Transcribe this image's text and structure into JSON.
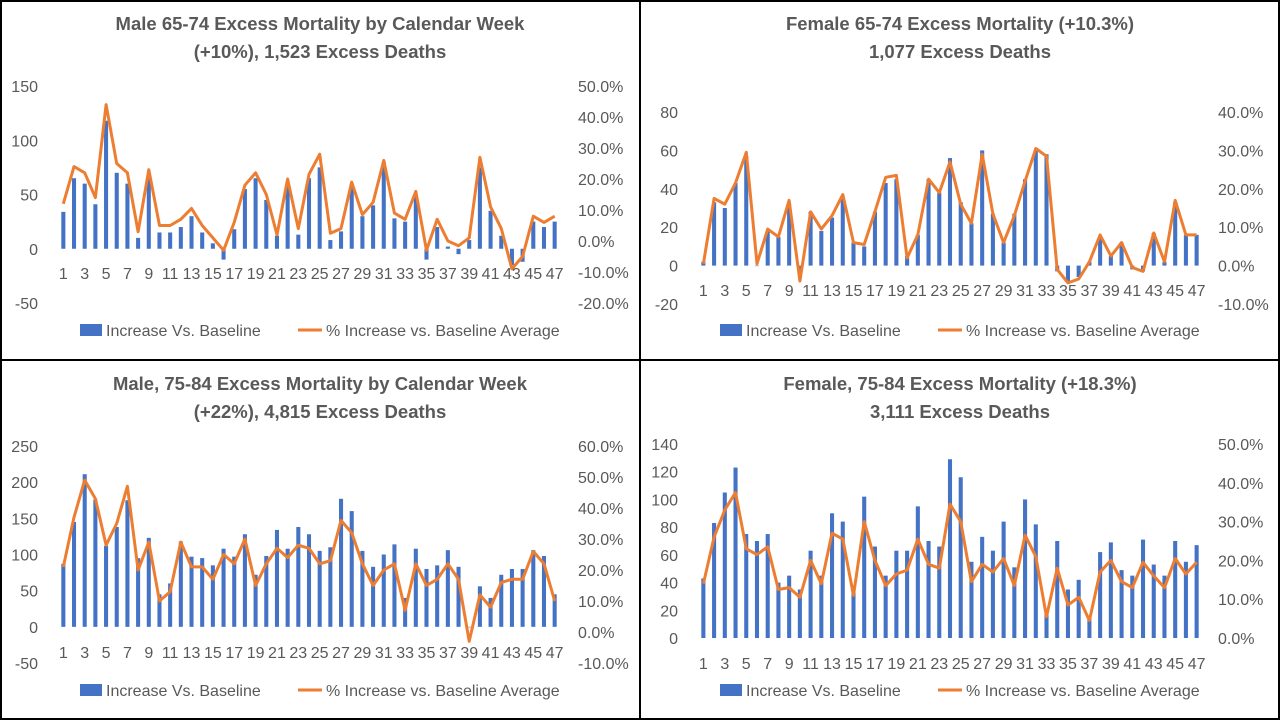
{
  "legend": {
    "bar_label": "Increase Vs. Baseline",
    "line_label": "% Increase vs. Baseline Average"
  },
  "colors": {
    "bar": "#4472C4",
    "line": "#ED7D31",
    "text": "#595959",
    "frame": "#000000"
  },
  "chart_data": [
    {
      "type": "bar",
      "combo": "bar+line (secondary axis)",
      "title_lines": [
        "Male 65-74 Excess Mortality by Calendar Week",
        "(+10%), 1,523 Excess Deaths"
      ],
      "ylim": [
        -50,
        150
      ],
      "yticks": [
        -50,
        0,
        50,
        100,
        150
      ],
      "y2lim": [
        -0.2,
        0.5
      ],
      "y2ticks": [
        "-20.0%",
        "-10.0%",
        "0.0%",
        "10.0%",
        "20.0%",
        "30.0%",
        "40.0%",
        "50.0%"
      ],
      "y2values": [
        -0.2,
        -0.1,
        0,
        0.1,
        0.2,
        0.3,
        0.4,
        0.5
      ],
      "x_label_weeks": [
        1,
        3,
        5,
        7,
        9,
        11,
        13,
        15,
        17,
        19,
        21,
        23,
        25,
        27,
        29,
        31,
        33,
        35,
        37,
        39,
        41,
        43,
        45,
        47
      ],
      "series": [
        {
          "name": "Increase Vs. Baseline",
          "axis": "primary",
          "values": [
            34,
            65,
            60,
            41,
            118,
            70,
            60,
            10,
            65,
            15,
            15,
            20,
            30,
            15,
            5,
            -10,
            18,
            55,
            65,
            45,
            12,
            60,
            13,
            65,
            75,
            8,
            16,
            60,
            30,
            40,
            80,
            28,
            25,
            50,
            -10,
            20,
            2,
            -5,
            8,
            75,
            35,
            12,
            -15,
            -12,
            25,
            20,
            25
          ]
        },
        {
          "name": "% Increase vs. Baseline Average",
          "axis": "secondary",
          "values": [
            0.12,
            0.24,
            0.22,
            0.14,
            0.44,
            0.25,
            0.22,
            0.03,
            0.23,
            0.05,
            0.05,
            0.07,
            0.105,
            0.05,
            0.01,
            -0.03,
            0.06,
            0.18,
            0.22,
            0.15,
            0.02,
            0.2,
            0.04,
            0.215,
            0.28,
            0.025,
            0.04,
            0.19,
            0.085,
            0.125,
            0.26,
            0.09,
            0.07,
            0.16,
            -0.03,
            0.07,
            0.0,
            -0.015,
            0.01,
            0.27,
            0.11,
            0.04,
            -0.09,
            -0.05,
            0.08,
            0.06,
            0.08
          ]
        }
      ]
    },
    {
      "type": "bar",
      "combo": "bar+line (secondary axis)",
      "title_lines": [
        "Female 65-74 Excess Mortality (+10.3%)",
        "1,077 Excess Deaths"
      ],
      "ylim": [
        -20,
        80
      ],
      "yticks": [
        -20,
        0,
        20,
        40,
        60,
        80
      ],
      "y2lim": [
        -0.1,
        0.4
      ],
      "y2ticks": [
        "-10.0%",
        "0.0%",
        "10.0%",
        "20.0%",
        "30.0%",
        "40.0%"
      ],
      "y2values": [
        -0.1,
        0,
        0.1,
        0.2,
        0.3,
        0.4
      ],
      "x_label_weeks": [
        1,
        3,
        5,
        7,
        9,
        11,
        13,
        15,
        17,
        19,
        21,
        23,
        25,
        27,
        29,
        31,
        33,
        35,
        37,
        39,
        41,
        43,
        45,
        47
      ],
      "series": [
        {
          "name": "Increase Vs. Baseline",
          "axis": "primary",
          "values": [
            2,
            33,
            30,
            43,
            57,
            0,
            18,
            15,
            32,
            -5,
            28,
            18,
            25,
            35,
            12,
            10,
            28,
            43,
            45,
            5,
            16,
            45,
            38,
            56,
            33,
            22,
            60,
            27,
            12,
            27,
            45,
            60,
            58,
            -3,
            -8,
            -6,
            2,
            15,
            5,
            12,
            -2,
            -3,
            17,
            2,
            33,
            16,
            16
          ]
        },
        {
          "name": "% Increase vs. Baseline Average",
          "axis": "secondary",
          "values": [
            0.005,
            0.175,
            0.16,
            0.215,
            0.295,
            0.005,
            0.095,
            0.075,
            0.17,
            -0.04,
            0.14,
            0.095,
            0.13,
            0.185,
            0.06,
            0.055,
            0.14,
            0.23,
            0.235,
            0.02,
            0.08,
            0.225,
            0.19,
            0.27,
            0.16,
            0.11,
            0.29,
            0.135,
            0.06,
            0.13,
            0.22,
            0.305,
            0.285,
            -0.01,
            -0.045,
            -0.035,
            0.01,
            0.08,
            0.025,
            0.06,
            -0.005,
            -0.015,
            0.085,
            0.01,
            0.17,
            0.08,
            0.08
          ]
        }
      ]
    },
    {
      "type": "bar",
      "combo": "bar+line (secondary axis)",
      "title_lines": [
        "Male, 75-84 Excess Mortality by Calendar Week",
        "(+22%), 4,815 Excess Deaths"
      ],
      "ylim": [
        -50,
        250
      ],
      "yticks": [
        -50,
        0,
        50,
        100,
        150,
        200,
        250
      ],
      "y2lim": [
        -0.1,
        0.6
      ],
      "y2ticks": [
        "-10.0%",
        "0.0%",
        "10.0%",
        "20.0%",
        "30.0%",
        "40.0%",
        "50.0%",
        "60.0%"
      ],
      "y2values": [
        -0.1,
        0,
        0.1,
        0.2,
        0.3,
        0.4,
        0.5,
        0.6
      ],
      "x_label_weeks": [
        1,
        3,
        5,
        7,
        9,
        11,
        13,
        15,
        17,
        19,
        21,
        23,
        25,
        27,
        29,
        31,
        33,
        35,
        37,
        39,
        41,
        43,
        45,
        47
      ],
      "series": [
        {
          "name": "Increase Vs. Baseline",
          "axis": "primary",
          "values": [
            87,
            145,
            211,
            176,
            112,
            138,
            175,
            95,
            123,
            45,
            60,
            118,
            97,
            95,
            85,
            108,
            97,
            128,
            72,
            98,
            134,
            108,
            138,
            128,
            105,
            110,
            177,
            160,
            105,
            83,
            100,
            114,
            40,
            108,
            80,
            85,
            106,
            83,
            0,
            56,
            40,
            72,
            80,
            80,
            106,
            98,
            45
          ]
        },
        {
          "name": "% Increase vs. Baseline Average",
          "axis": "secondary",
          "values": [
            0.21,
            0.37,
            0.49,
            0.43,
            0.28,
            0.35,
            0.47,
            0.2,
            0.29,
            0.1,
            0.13,
            0.29,
            0.21,
            0.21,
            0.17,
            0.25,
            0.22,
            0.3,
            0.15,
            0.22,
            0.27,
            0.24,
            0.28,
            0.27,
            0.22,
            0.23,
            0.36,
            0.32,
            0.22,
            0.15,
            0.2,
            0.22,
            0.07,
            0.22,
            0.15,
            0.17,
            0.22,
            0.17,
            -0.03,
            0.12,
            0.08,
            0.16,
            0.17,
            0.17,
            0.26,
            0.22,
            0.1
          ]
        }
      ]
    },
    {
      "type": "bar",
      "combo": "bar+line (secondary axis)",
      "title_lines": [
        "Female, 75-84 Excess Mortality (+18.3%)",
        "3,111 Excess Deaths"
      ],
      "ylim": [
        0,
        140
      ],
      "yticks": [
        0,
        20,
        40,
        60,
        80,
        100,
        120,
        140
      ],
      "y2lim": [
        0,
        0.5
      ],
      "y2ticks": [
        "0.0%",
        "10.0%",
        "20.0%",
        "30.0%",
        "40.0%",
        "50.0%"
      ],
      "y2values": [
        0,
        0.1,
        0.2,
        0.3,
        0.4,
        0.5
      ],
      "x_label_weeks": [
        1,
        3,
        5,
        7,
        9,
        11,
        13,
        15,
        17,
        19,
        21,
        23,
        25,
        27,
        29,
        31,
        33,
        35,
        37,
        39,
        41,
        43,
        45,
        47
      ],
      "series": [
        {
          "name": "Increase Vs. Baseline",
          "axis": "primary",
          "values": [
            43,
            83,
            105,
            123,
            75,
            70,
            75,
            40,
            45,
            35,
            63,
            45,
            90,
            84,
            38,
            102,
            66,
            45,
            63,
            63,
            95,
            70,
            66,
            129,
            116,
            55,
            73,
            63,
            84,
            51,
            100,
            82,
            20,
            70,
            35,
            42,
            15,
            62,
            69,
            49,
            45,
            71,
            53,
            45,
            70,
            55,
            67
          ]
        },
        {
          "name": "% Increase vs. Baseline Average",
          "axis": "secondary",
          "values": [
            0.14,
            0.26,
            0.33,
            0.375,
            0.23,
            0.215,
            0.235,
            0.125,
            0.13,
            0.105,
            0.2,
            0.14,
            0.27,
            0.255,
            0.11,
            0.3,
            0.2,
            0.135,
            0.165,
            0.175,
            0.255,
            0.19,
            0.18,
            0.345,
            0.3,
            0.145,
            0.19,
            0.17,
            0.205,
            0.135,
            0.265,
            0.21,
            0.055,
            0.18,
            0.085,
            0.105,
            0.045,
            0.17,
            0.2,
            0.145,
            0.13,
            0.195,
            0.16,
            0.13,
            0.205,
            0.165,
            0.195
          ]
        }
      ]
    }
  ]
}
